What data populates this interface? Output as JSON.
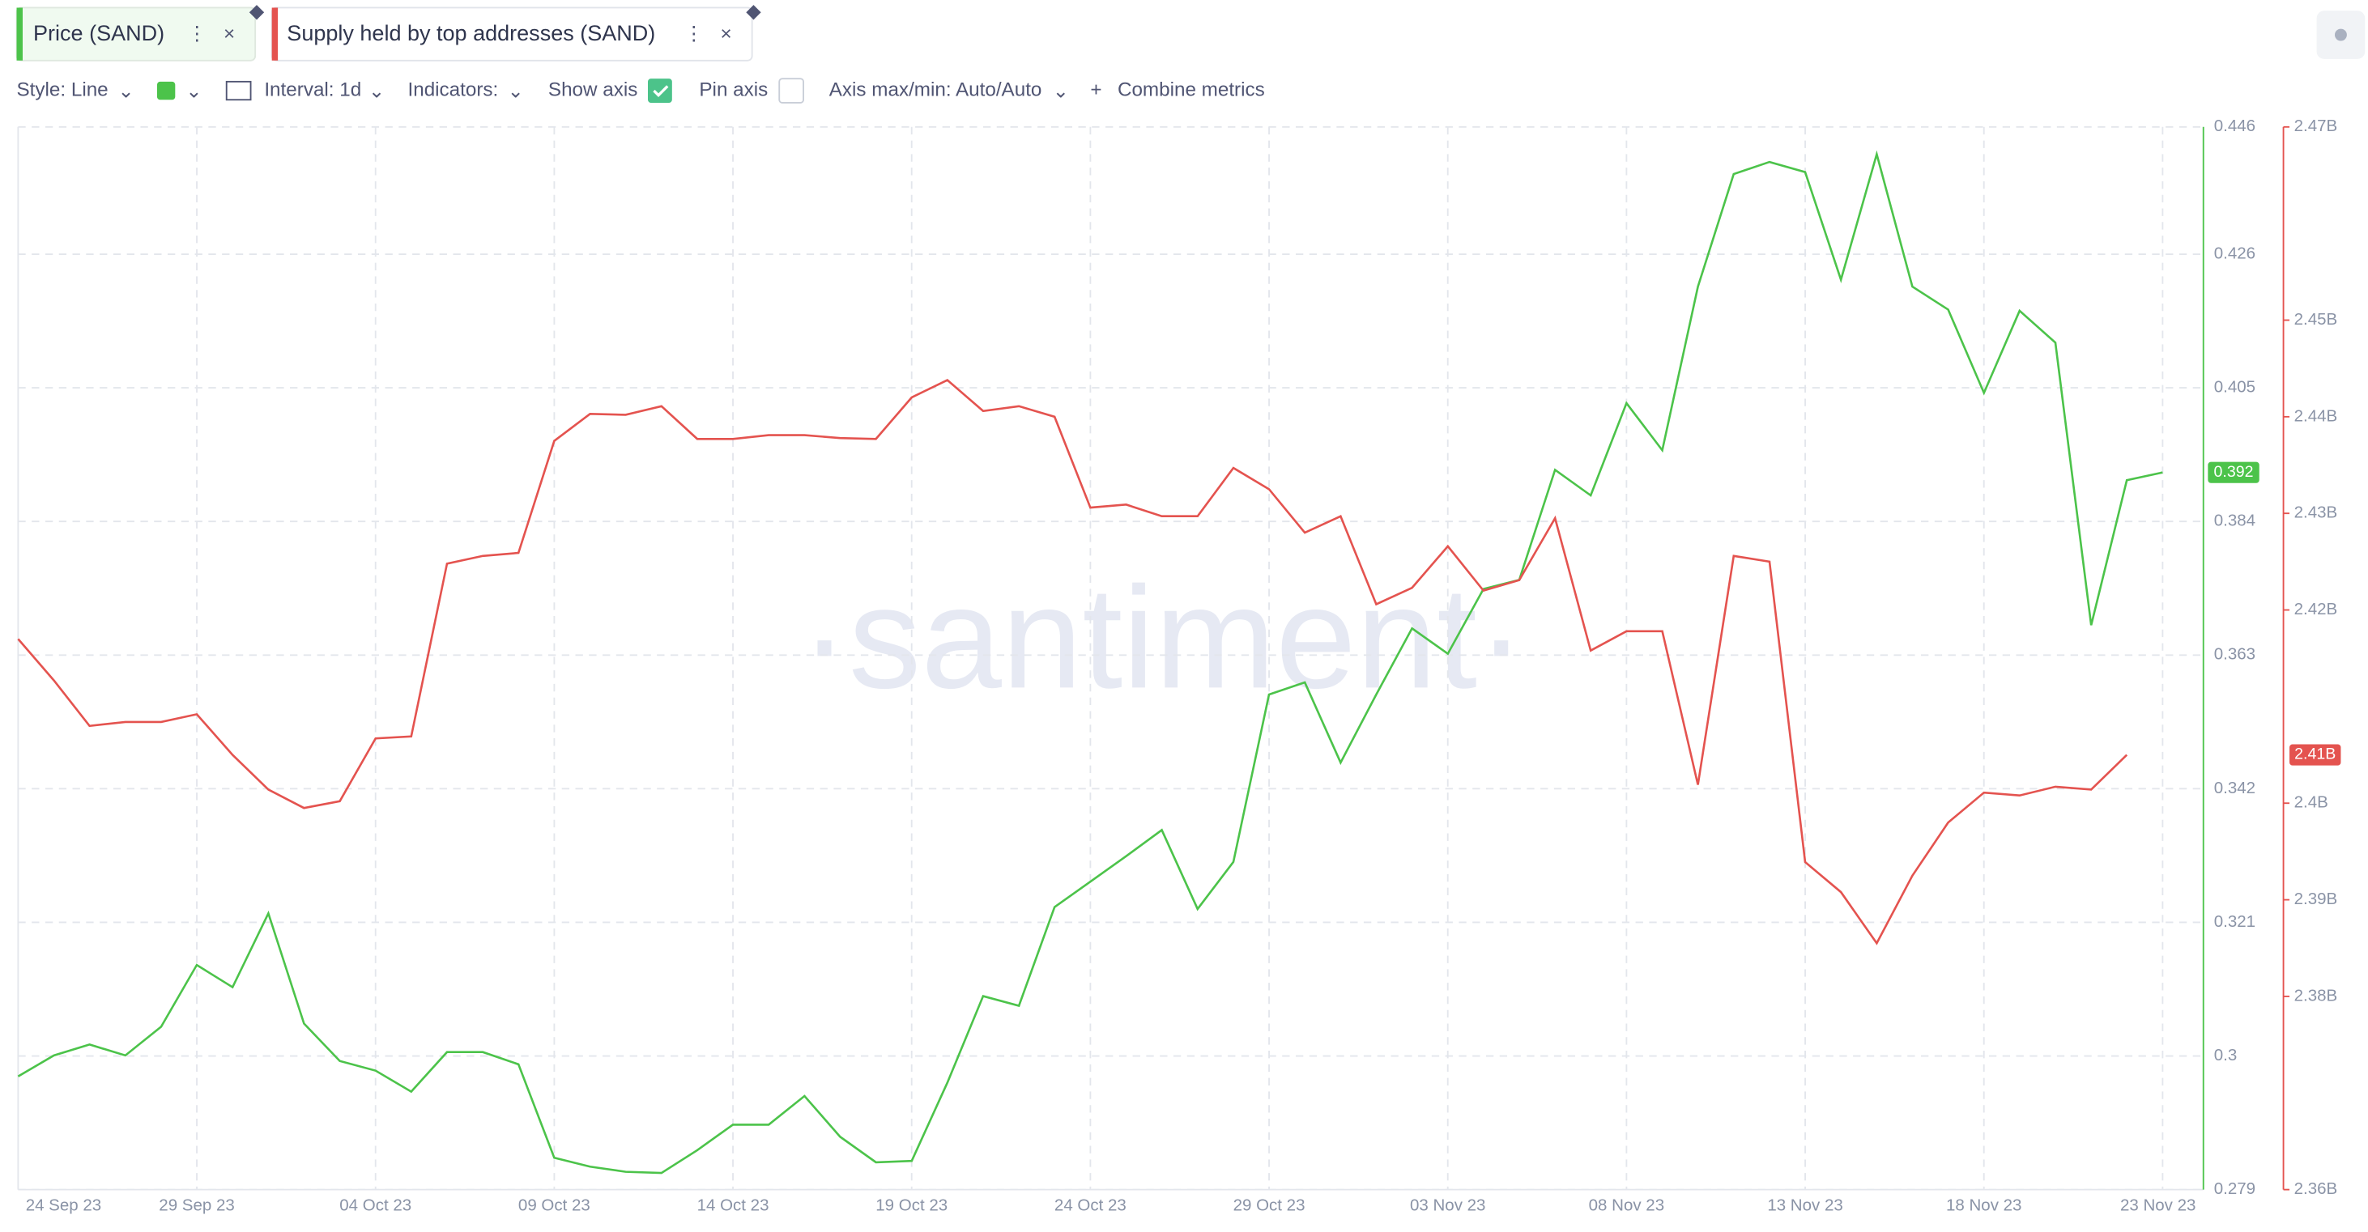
{
  "tabs": [
    "Price (SAND)",
    "Supply held by top addresses (SAND)"
  ],
  "toolbar": {
    "style": "Style: Line",
    "interval": "Interval: 1d",
    "indicators": "Indicators:",
    "show_axis": "Show axis",
    "pin_axis": "Pin axis",
    "axis_range": "Axis max/min: Auto/Auto",
    "combine": "Combine metrics"
  },
  "watermark": "·santiment·",
  "chart_data": {
    "type": "line",
    "grid": true,
    "categories": [
      "24 Sep 23",
      null,
      null,
      null,
      null,
      "29 Sep 23",
      null,
      null,
      null,
      null,
      "04 Oct 23",
      null,
      null,
      null,
      null,
      "09 Oct 23",
      null,
      null,
      null,
      null,
      "14 Oct 23",
      null,
      null,
      null,
      null,
      "19 Oct 23",
      null,
      null,
      null,
      null,
      "24 Oct 23",
      null,
      null,
      null,
      null,
      "29 Oct 23",
      null,
      null,
      null,
      null,
      "03 Nov 23",
      null,
      null,
      null,
      null,
      "08 Nov 23",
      null,
      null,
      null,
      null,
      "13 Nov 23",
      null,
      null,
      null,
      null,
      "18 Nov 23",
      null,
      null,
      null,
      null,
      "23 Nov 23"
    ],
    "ylim": [
      0.279,
      0.446
    ],
    "yticks": [
      0.279,
      0.3,
      0.321,
      0.342,
      0.363,
      0.384,
      0.405,
      0.426,
      0.446
    ],
    "y2lim": [
      2.36,
      2.47
    ],
    "y2ticks": [
      {
        "value": 2.36,
        "label": "2.36B"
      },
      {
        "value": 2.38,
        "label": "2.38B"
      },
      {
        "value": 2.39,
        "label": "2.39B"
      },
      {
        "value": 2.4,
        "label": "2.4B"
      },
      {
        "value": 2.42,
        "label": "2.42B"
      },
      {
        "value": 2.43,
        "label": "2.43B"
      },
      {
        "value": 2.44,
        "label": "2.44B"
      },
      {
        "value": 2.45,
        "label": "2.45B"
      },
      {
        "value": 2.47,
        "label": "2.47B"
      }
    ],
    "series": [
      {
        "name": "Price (SAND)",
        "color": "#4cc34a",
        "axis": "y",
        "last_value_label": "0.392",
        "values": [
          0.2968,
          0.3001,
          0.3018,
          0.3001,
          0.3046,
          0.3143,
          0.3108,
          0.3224,
          0.3051,
          0.2992,
          0.2977,
          0.2944,
          0.3006,
          0.3006,
          0.2987,
          0.284,
          0.2826,
          0.2818,
          0.2816,
          0.2852,
          0.2892,
          0.2892,
          0.2937,
          0.2873,
          0.2833,
          0.2835,
          0.2958,
          0.3094,
          0.3079,
          0.3234,
          0.3274,
          0.3314,
          0.3355,
          0.3231,
          0.3305,
          0.3568,
          0.3587,
          0.3461,
          0.3568,
          0.3672,
          0.3632,
          0.3734,
          0.3748,
          0.3921,
          0.3881,
          0.4026,
          0.3952,
          0.4209,
          0.4386,
          0.4405,
          0.4389,
          0.422,
          0.4417,
          0.4209,
          0.4173,
          0.4042,
          0.4171,
          0.4121,
          0.3677,
          0.3905,
          0.3917
        ]
      },
      {
        "name": "Supply held by top addresses (SAND)",
        "color": "#e4534f",
        "axis": "y2",
        "last_value_label": "2.41B",
        "values": [
          2.417,
          2.4127,
          2.408,
          2.4084,
          2.4084,
          2.4092,
          2.405,
          2.4014,
          2.3995,
          2.4002,
          2.4067,
          2.4069,
          2.4248,
          2.4256,
          2.4259,
          2.4375,
          2.4403,
          2.4402,
          2.4411,
          2.4377,
          2.4377,
          2.4381,
          2.4381,
          2.4378,
          2.4377,
          2.442,
          2.4438,
          2.4406,
          2.4411,
          2.44,
          2.4306,
          2.4309,
          2.4297,
          2.4297,
          2.4347,
          2.4325,
          2.428,
          2.4297,
          2.4206,
          2.4223,
          2.4266,
          2.422,
          2.4231,
          2.4295,
          2.4158,
          2.4178,
          2.4178,
          2.4019,
          2.4256,
          2.425,
          2.3939,
          2.3908,
          2.3855,
          2.3925,
          2.398,
          2.4011,
          2.4008,
          2.4017,
          2.4014,
          2.405,
          null
        ]
      }
    ]
  }
}
